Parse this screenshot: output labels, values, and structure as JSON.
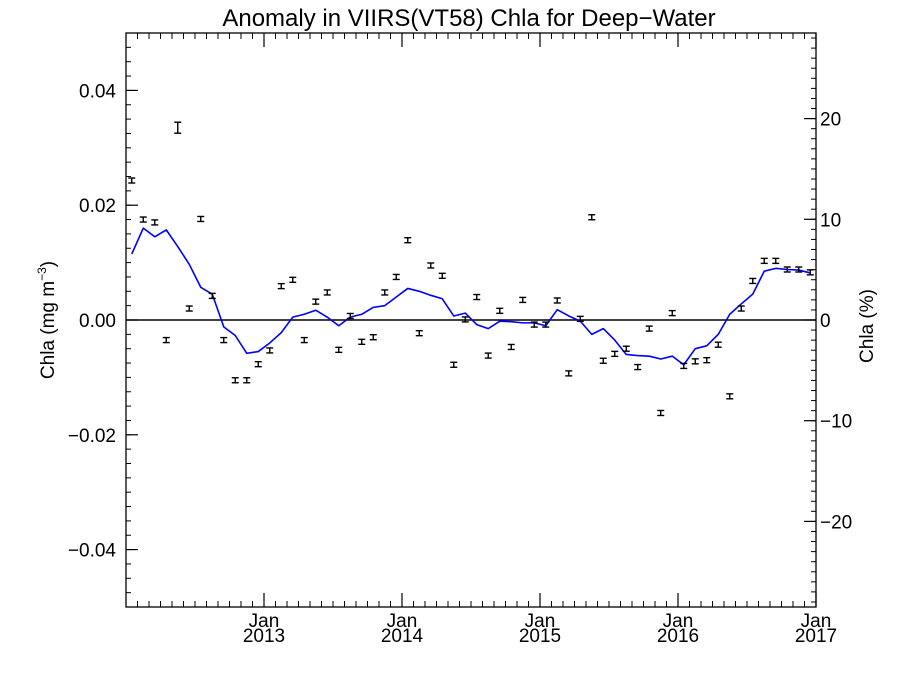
{
  "chart_data": {
    "type": "line",
    "title": "Anomaly in VIIRS(VT58) Chla for Deep−Water",
    "ylabel_left": "Chla (mg m",
    "ylabel_left_superscript": "−3",
    "ylabel_left_close": ")",
    "ylabel_right": "Chla (%)",
    "xlim": [
      "2012-01",
      "2017-01"
    ],
    "ylim_left": [
      -0.05,
      0.05
    ],
    "ylim_right": [
      -28.5,
      28.5
    ],
    "zero_line": true,
    "x_ticks": [
      {
        "month": "Jan",
        "year": "2013",
        "date": "2013-01"
      },
      {
        "month": "Jan",
        "year": "2014",
        "date": "2014-01"
      },
      {
        "month": "Jan",
        "year": "2015",
        "date": "2015-01"
      },
      {
        "month": "Jan",
        "year": "2016",
        "date": "2016-01"
      },
      {
        "month": "Jan",
        "year": "2017",
        "date": "2017-01"
      }
    ],
    "y_ticks_left": [
      {
        "value": 0.04,
        "label": "0.04"
      },
      {
        "value": 0.02,
        "label": "0.02"
      },
      {
        "value": 0.0,
        "label": "0.00"
      },
      {
        "value": -0.02,
        "label": "−0.02"
      },
      {
        "value": -0.04,
        "label": "−0.04"
      }
    ],
    "y_ticks_right": [
      {
        "value": 20,
        "label": "20"
      },
      {
        "value": 10,
        "label": "10"
      },
      {
        "value": 0,
        "label": "0"
      },
      {
        "value": -10,
        "label": "−10"
      },
      {
        "value": -20,
        "label": "−20"
      }
    ],
    "series": [
      {
        "kind": "monthly anomaly with error bars",
        "color": "#000000",
        "points": [
          {
            "x": "2012-01",
            "y": 0.0243
          },
          {
            "x": "2012-02",
            "y": 0.0175
          },
          {
            "x": "2012-03",
            "y": 0.017
          },
          {
            "x": "2012-04",
            "y": -0.0035
          },
          {
            "x": "2012-05",
            "y": 0.0335
          },
          {
            "x": "2012-06",
            "y": 0.002
          },
          {
            "x": "2012-07",
            "y": 0.0176
          },
          {
            "x": "2012-08",
            "y": 0.0042
          },
          {
            "x": "2012-09",
            "y": -0.0035
          },
          {
            "x": "2012-10",
            "y": -0.0105
          },
          {
            "x": "2012-11",
            "y": -0.0105
          },
          {
            "x": "2012-12",
            "y": -0.0077
          },
          {
            "x": "2013-01",
            "y": -0.0053
          },
          {
            "x": "2013-02",
            "y": 0.0059
          },
          {
            "x": "2013-03",
            "y": 0.007
          },
          {
            "x": "2013-04",
            "y": -0.0035
          },
          {
            "x": "2013-05",
            "y": 0.0032
          },
          {
            "x": "2013-06",
            "y": 0.0048
          },
          {
            "x": "2013-07",
            "y": -0.0052
          },
          {
            "x": "2013-08",
            "y": 0.0007
          },
          {
            "x": "2013-09",
            "y": -0.0038
          },
          {
            "x": "2013-10",
            "y": -0.003
          },
          {
            "x": "2013-11",
            "y": 0.0048
          },
          {
            "x": "2013-12",
            "y": 0.0075
          },
          {
            "x": "2014-01",
            "y": 0.0139
          },
          {
            "x": "2014-02",
            "y": -0.0023
          },
          {
            "x": "2014-03",
            "y": 0.0095
          },
          {
            "x": "2014-04",
            "y": 0.0077
          },
          {
            "x": "2014-05",
            "y": -0.0078
          },
          {
            "x": "2014-06",
            "y": 0.0001
          },
          {
            "x": "2014-07",
            "y": 0.004
          },
          {
            "x": "2014-08",
            "y": -0.0062
          },
          {
            "x": "2014-09",
            "y": 0.0016
          },
          {
            "x": "2014-10",
            "y": -0.0047
          },
          {
            "x": "2014-11",
            "y": 0.0035
          },
          {
            "x": "2014-12",
            "y": -0.0008
          },
          {
            "x": "2015-01",
            "y": -0.0008
          },
          {
            "x": "2015-02",
            "y": 0.0034
          },
          {
            "x": "2015-03",
            "y": -0.0093
          },
          {
            "x": "2015-04",
            "y": 0.0002
          },
          {
            "x": "2015-05",
            "y": 0.0179
          },
          {
            "x": "2015-06",
            "y": -0.0071
          },
          {
            "x": "2015-07",
            "y": -0.0059
          },
          {
            "x": "2015-08",
            "y": -0.005
          },
          {
            "x": "2015-09",
            "y": -0.0082
          },
          {
            "x": "2015-10",
            "y": -0.0015
          },
          {
            "x": "2015-11",
            "y": -0.0162
          },
          {
            "x": "2015-12",
            "y": 0.0012
          },
          {
            "x": "2016-01",
            "y": -0.008
          },
          {
            "x": "2016-02",
            "y": -0.0072
          },
          {
            "x": "2016-03",
            "y": -0.007
          },
          {
            "x": "2016-04",
            "y": -0.0043
          },
          {
            "x": "2016-05",
            "y": -0.0133
          },
          {
            "x": "2016-06",
            "y": 0.002
          },
          {
            "x": "2016-07",
            "y": 0.0068
          },
          {
            "x": "2016-08",
            "y": 0.0103
          },
          {
            "x": "2016-09",
            "y": 0.0103
          },
          {
            "x": "2016-10",
            "y": 0.0088
          },
          {
            "x": "2016-11",
            "y": 0.0088
          },
          {
            "x": "2016-12",
            "y": 0.0083
          }
        ]
      },
      {
        "kind": "smoothed line",
        "color": "#0000ff",
        "points": [
          {
            "x": "2012-01",
            "y": 0.0115
          },
          {
            "x": "2012-02",
            "y": 0.016
          },
          {
            "x": "2012-03",
            "y": 0.0145
          },
          {
            "x": "2012-04",
            "y": 0.0157
          },
          {
            "x": "2012-05",
            "y": 0.0128
          },
          {
            "x": "2012-06",
            "y": 0.0097
          },
          {
            "x": "2012-07",
            "y": 0.0057
          },
          {
            "x": "2012-08",
            "y": 0.0045
          },
          {
            "x": "2012-09",
            "y": -0.0012
          },
          {
            "x": "2012-10",
            "y": -0.0027
          },
          {
            "x": "2012-11",
            "y": -0.0058
          },
          {
            "x": "2012-12",
            "y": -0.0055
          },
          {
            "x": "2013-01",
            "y": -0.004
          },
          {
            "x": "2013-02",
            "y": -0.0022
          },
          {
            "x": "2013-03",
            "y": 0.0005
          },
          {
            "x": "2013-04",
            "y": 0.001
          },
          {
            "x": "2013-05",
            "y": 0.0017
          },
          {
            "x": "2013-06",
            "y": 0.0005
          },
          {
            "x": "2013-07",
            "y": -0.001
          },
          {
            "x": "2013-08",
            "y": 0.0005
          },
          {
            "x": "2013-09",
            "y": 0.001
          },
          {
            "x": "2013-10",
            "y": 0.0022
          },
          {
            "x": "2013-11",
            "y": 0.0025
          },
          {
            "x": "2013-12",
            "y": 0.004
          },
          {
            "x": "2014-01",
            "y": 0.0055
          },
          {
            "x": "2014-02",
            "y": 0.005
          },
          {
            "x": "2014-03",
            "y": 0.0043
          },
          {
            "x": "2014-04",
            "y": 0.0037
          },
          {
            "x": "2014-05",
            "y": 0.0007
          },
          {
            "x": "2014-06",
            "y": 0.0012
          },
          {
            "x": "2014-07",
            "y": -0.0008
          },
          {
            "x": "2014-08",
            "y": -0.0015
          },
          {
            "x": "2014-09",
            "y": -0.0002
          },
          {
            "x": "2014-10",
            "y": -0.0003
          },
          {
            "x": "2014-11",
            "y": -0.0005
          },
          {
            "x": "2014-12",
            "y": -0.0005
          },
          {
            "x": "2015-01",
            "y": -0.001
          },
          {
            "x": "2015-02",
            "y": 0.0018
          },
          {
            "x": "2015-03",
            "y": 0.0007
          },
          {
            "x": "2015-04",
            "y": -0.0002
          },
          {
            "x": "2015-05",
            "y": -0.0025
          },
          {
            "x": "2015-06",
            "y": -0.0015
          },
          {
            "x": "2015-07",
            "y": -0.0035
          },
          {
            "x": "2015-08",
            "y": -0.006
          },
          {
            "x": "2015-09",
            "y": -0.0062
          },
          {
            "x": "2015-10",
            "y": -0.0063
          },
          {
            "x": "2015-11",
            "y": -0.0068
          },
          {
            "x": "2015-12",
            "y": -0.0063
          },
          {
            "x": "2016-01",
            "y": -0.0078
          },
          {
            "x": "2016-02",
            "y": -0.005
          },
          {
            "x": "2016-03",
            "y": -0.0045
          },
          {
            "x": "2016-04",
            "y": -0.0025
          },
          {
            "x": "2016-05",
            "y": 0.001
          },
          {
            "x": "2016-06",
            "y": 0.0028
          },
          {
            "x": "2016-07",
            "y": 0.0045
          },
          {
            "x": "2016-08",
            "y": 0.0085
          },
          {
            "x": "2016-09",
            "y": 0.009
          },
          {
            "x": "2016-10",
            "y": 0.0088
          },
          {
            "x": "2016-11",
            "y": 0.0087
          },
          {
            "x": "2016-12",
            "y": 0.0082
          }
        ]
      }
    ]
  }
}
